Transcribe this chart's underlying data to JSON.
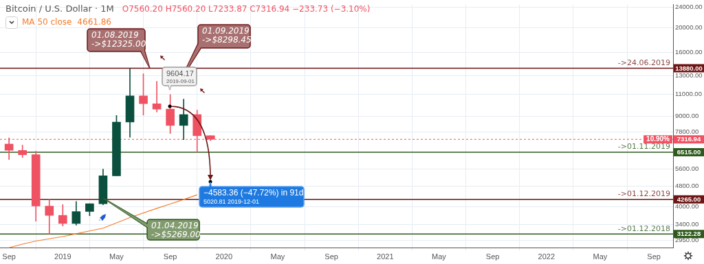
{
  "chart_data": {
    "type": "candlestick",
    "title": "Bitcoin / U.S. Dollar · 1M",
    "subtitle": "O7560.20 H7560.20 L7233.87 C7316.94 −233.73 (−3.10%)",
    "x": [
      "2018-09",
      "2018-10",
      "2018-11",
      "2018-12",
      "2019-01",
      "2019-02",
      "2019-03",
      "2019-04",
      "2019-05",
      "2019-06",
      "2019-07",
      "2019-08",
      "2019-09",
      "2019-10",
      "2019-11",
      "2019-12"
    ],
    "ohlc": [
      [
        7015,
        7410,
        6100,
        6626
      ],
      [
        6626,
        6950,
        6210,
        6370
      ],
      [
        6370,
        6570,
        3500,
        4015
      ],
      [
        4015,
        4265,
        3122.28,
        3690
      ],
      [
        3690,
        4070,
        3355,
        3430
      ],
      [
        3430,
        4185,
        3380,
        3820
      ],
      [
        3820,
        4100,
        3680,
        4100
      ],
      [
        4100,
        5600,
        4060,
        5269
      ],
      [
        5269,
        9080,
        5269,
        8550
      ],
      [
        8550,
        13880,
        7450,
        10820
      ],
      [
        10820,
        13200,
        9100,
        10080
      ],
      [
        10080,
        12325,
        9350,
        9600
      ],
      [
        9604.17,
        10950,
        7710,
        8298.45
      ],
      [
        8298.45,
        10500,
        7300,
        9150
      ],
      [
        9150,
        9520,
        6515,
        7560.2
      ],
      [
        7560.2,
        7560.2,
        7233.87,
        7316.94
      ]
    ],
    "colors": [
      "#ef5262",
      "#ef5262",
      "#ef5262",
      "#ef5262",
      "#ef5262",
      "#0b4f3e",
      "#0b4f3e",
      "#0b4f3e",
      "#0b4f3e",
      "#0b4f3e",
      "#ef5262",
      "#ef5262",
      "#ef5262",
      "#0b4f3e",
      "#ef5262",
      "#ef5262"
    ],
    "series": [
      {
        "name": "MA 50 close",
        "type": "line",
        "color": "#f57c2b",
        "x": [
          "2018-09",
          "2018-10",
          "2018-11",
          "2018-12",
          "2019-01",
          "2019-02",
          "2019-03",
          "2019-04",
          "2019-05",
          "2019-06",
          "2019-07",
          "2019-08",
          "2019-09",
          "2019-10",
          "2019-11"
        ],
        "values": [
          2760,
          2850,
          2930,
          2990,
          3050,
          3130,
          3210,
          3290,
          3450,
          3620,
          null,
          3930,
          4090,
          4260,
          4440
        ]
      }
    ],
    "xlim": [
      "2018-08-11",
      "2022-10-14"
    ],
    "xticks": [
      {
        "value": "2018-09",
        "label": "Sep"
      },
      {
        "value": "2019-01",
        "label": "2019"
      },
      {
        "value": "2019-05",
        "label": "May"
      },
      {
        "value": "2019-09",
        "label": "Sep"
      },
      {
        "value": "2020-01",
        "label": "2020"
      },
      {
        "value": "2020-05",
        "label": "May"
      },
      {
        "value": "2020-09",
        "label": "Sep"
      },
      {
        "value": "2021-01",
        "label": "2021"
      },
      {
        "value": "2021-05",
        "label": "May"
      },
      {
        "value": "2021-09",
        "label": "Sep"
      },
      {
        "value": "2022-01",
        "label": "2022"
      },
      {
        "value": "2022-05",
        "label": "May"
      },
      {
        "value": "2022-09",
        "label": "Sep"
      }
    ],
    "ylim": [
      2750,
      24600
    ],
    "yticks": [
      {
        "value": 2950,
        "label": "2950.00"
      },
      {
        "value": 3400,
        "label": "3400.00"
      },
      {
        "value": 4000,
        "label": "4000.00"
      },
      {
        "value": 4800,
        "label": "4800.00"
      },
      {
        "value": 5600,
        "label": "5600.00"
      },
      {
        "value": 7800,
        "label": "7800.00"
      },
      {
        "value": 9000,
        "label": "9000.00"
      },
      {
        "value": 11000,
        "label": "11000.00"
      },
      {
        "value": 13000,
        "label": "13000.00"
      },
      {
        "value": 16000,
        "label": "16000.00"
      },
      {
        "value": 20000,
        "label": "20000.00"
      },
      {
        "value": 24000,
        "label": "24000.00"
      }
    ],
    "log": "y",
    "grid": true,
    "legend": "top left",
    "ref_lines": [
      {
        "axis": "y",
        "value": 13880,
        "label": "->24.06.2019",
        "color": "#6e1414"
      },
      {
        "axis": "y",
        "value": 7316.94,
        "color": "#ef5262",
        "line_style": "dotted"
      },
      {
        "axis": "y",
        "value": 6515,
        "label": "->01.11.2019",
        "color": "#2e5a1c"
      },
      {
        "axis": "y",
        "value": 4265,
        "label": "->01.12.2019",
        "color": "#6e1414"
      },
      {
        "axis": "y",
        "value": 3122.28,
        "label": "->01.12.2018",
        "color": "#2e5a1c"
      }
    ],
    "annotations": [
      "4661.86",
      "01.08.2019\n->$12325.00",
      "01.09.2019\n->$8298.45",
      "01.04.2019\n->$5269.00",
      "9604.17\n2019-09-01",
      "−4583.36 (−47.72%) in 91d\n5020.81 2019-12-01",
      "10.90%",
      "13880.00",
      "7316.94",
      "6515.00",
      "4265.00",
      "3122.28"
    ]
  }
}
